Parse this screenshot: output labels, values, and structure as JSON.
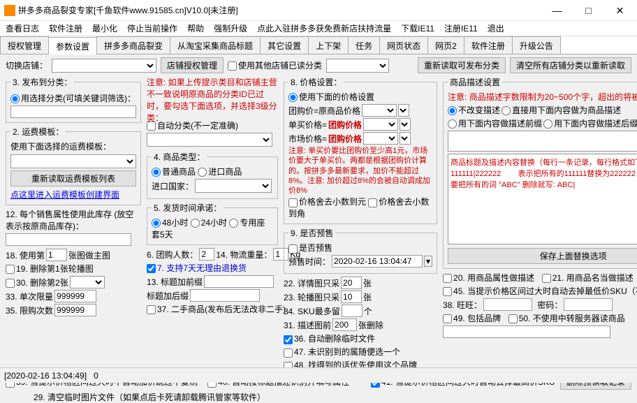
{
  "window": {
    "title": "拼多多商品裂变专家[千鱼软件www.91585.cn]V10.0[未注册]"
  },
  "menu": [
    "查看日志",
    "软件注册",
    "最小化",
    "停止当前操作",
    "帮助",
    "强制升级",
    "点此入驻拼多多获免费新店扶持流量",
    "下载IE11",
    "注册IE11",
    "退出"
  ],
  "tabs": [
    "授权管理",
    "参数设置",
    "拼多多商品裂变",
    "从淘宝采集商品标题",
    "其它设置",
    "上下架",
    "任务",
    "网页状态",
    "网页2",
    "软件注册",
    "升级公告"
  ],
  "toprow": {
    "label": "切换店铺：",
    "btn1": "店铺授权管理",
    "chk": "使用其他店铺已读分类",
    "btn2": "重新读取可发布分类",
    "btn3": "清空所有店铺分类以重新读取"
  },
  "sec3": {
    "legend": "3. 发布到分类：",
    "note": "注意:  如果上传提示类目和店铺主营不一致说明原商品的分类ID已过时，要勾选下面选项，并选择3级分类：",
    "opt1": "用选择分类(可填关键词筛选)：",
    "opt2": "自动分类(不一定准确)"
  },
  "sec2": {
    "legend": "2. 运费模板：",
    "txt": "使用下面选择的运费模板：",
    "btn": "重新读取运费模板列表",
    "link": "点这里进入运费模板创建界面"
  },
  "sec4": {
    "legend": "4. 商品类型：",
    "opt1": "普通商品",
    "opt2": "进口商品",
    "lab": "进口国家："
  },
  "sec5": {
    "legend": "5. 发货时间承诺：",
    "opt1": "48小时",
    "opt2": "24小时",
    "opt3": "专用座套5天"
  },
  "sec6": {
    "l1": "6. 团购人数：",
    "v1": "2",
    "l2": "14. 物流重量：",
    "v2": "1",
    "u": "Kg",
    "l3": "7. 支持7天无理由退换货",
    "l4": "13. 标题加前缀",
    "l5": "标题加后缀",
    "chk37": "37. 二手商品(发布后无法改非二手)"
  },
  "sec8": {
    "legend": "8. 价格设置：",
    "opt": "使用下面的价格设置",
    "r1": "团购价=原商品价格",
    "r2": "单买价格=",
    "r2v": "团购价格",
    "r3": "市场价格=",
    "r3v": "团购价格",
    "note": "注意: 单买价要比团购价至少高1元，市场价要大于单买价。两都是根据团购价计算的。按拼多多最新要求，加价不能超过8%。注意: 加价超过8%的会被自动调成加价8%",
    "c1": "价格舍去小数到元",
    "c2": "价格舍去小数到角"
  },
  "sec9": {
    "legend": "9. 是否预售",
    "lab": "是否预售",
    "lab2": "预售时间：",
    "val": "2020-02-16 13:04:47"
  },
  "sec22": {
    "l1": "22. 详情图只采",
    "v1": "20",
    "u": "张",
    "l2": "23. 轮播图只采",
    "v2": "10",
    "l3": "34. SKU最多留",
    "v3": ""
  },
  "sec31": {
    "l": "31. 描述图前",
    "v": "200",
    "u": "张删除",
    "c36": "36. 自动删除临时文件",
    "c47": "47. 未识别到的属随便选一个",
    "c48": "48. 找得到的话优先使用这个品牌"
  },
  "prod_desc": {
    "legend": "商品描述设置",
    "note": "注意:  商品描述字数限制为20~500个字，超出的将被丢掉。",
    "o1": "不改变描述",
    "o2": "直接用下面内容做为商品描述",
    "o3": "用下面内容做描述前缀",
    "o4": "用下面内容做描述后缀",
    "replace": "商品标题及描述内容替换（每行一条记录，每行格式如下）：\n111111|222222        表示把所有的111111替换为222222\n要把所有的词 \"ABC\" 删除就写: ABC|",
    "btn": "保存上面替换选项"
  },
  "sec12": {
    "l": "12. 每个销售属性使用此库存 (放空表示按原商品库存)：",
    "l18": "18. 使用第",
    "v18": "1",
    "u18": "张图做主图",
    "c19": "19. 删除第1张轮播图",
    "c30": "30. 删除第2张",
    "l33": "33. 单次限量",
    "v33": "999999",
    "l35": "35. 限购次数",
    "v35": "999999"
  },
  "rcol": {
    "c20": "20. 用商品属性做描述",
    "c21": "21. 用商品名当做描述",
    "c45": "45. 当提示价格区间过大时自动去掉最低价SKU（不能与41同时勾）",
    "l38": "38. 旺旺：",
    "l38b": "密码：",
    "c49": "49. 包括品牌",
    "c50": "50. 不使用中转服务器读商品"
  },
  "bottom": {
    "c39": "39. 当提示价格区间过大时不自动加价跳过不复制",
    "c40": "40. 自动按标题描述识别并填写属性",
    "c41": "41. 当提示价格区间过大时自动去掉最高价SKU",
    "btn": "删除预读取记录",
    "c29": "29. 清空临时图片文件（如果点后卡死请卸载腾讯管家等软件）"
  },
  "status": {
    "time": "[2020-02-16 13:04:49]",
    "n": "0"
  }
}
